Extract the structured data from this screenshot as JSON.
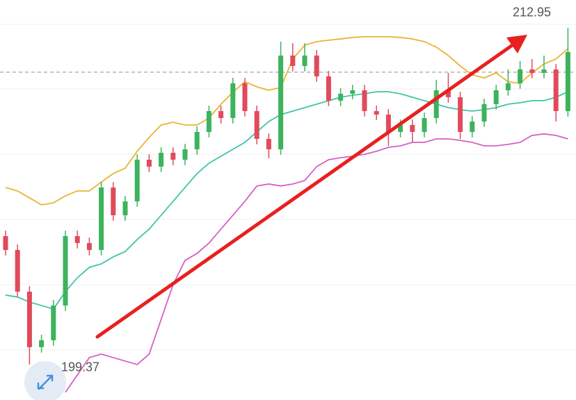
{
  "chart_data": {
    "type": "candlestick",
    "ylim": [
      197.94,
      214.07
    ],
    "up_color": "#3cb35c",
    "down_color": "#e04a5c",
    "open": [
      204.55,
      203.99,
      202.31,
      200.07,
      200.35,
      201.75,
      204.55,
      204.27,
      203.99,
      206.51,
      205.39,
      205.95,
      207.63,
      207.35,
      207.91,
      207.63,
      208.05,
      208.75,
      209.59,
      209.31,
      210.71,
      209.59,
      208.47,
      208.05,
      211.83,
      211.41,
      211.83,
      210.99,
      210.01,
      210.29,
      210.43,
      209.59,
      209.45,
      208.75,
      209.03,
      208.75,
      209.31,
      210.43,
      210.15,
      208.75,
      209.17,
      209.87,
      210.43,
      210.71,
      211.27,
      211.13,
      211.27,
      209.59
    ],
    "high": [
      204.77,
      204.21,
      202.53,
      200.57,
      201.97,
      204.77,
      204.77,
      204.49,
      206.73,
      206.73,
      206.17,
      207.85,
      207.85,
      208.13,
      208.13,
      208.27,
      208.97,
      209.81,
      209.81,
      210.93,
      210.93,
      209.81,
      208.69,
      212.39,
      212.33,
      212.33,
      212.05,
      211.21,
      210.51,
      210.65,
      210.65,
      209.81,
      209.67,
      209.25,
      209.25,
      209.53,
      210.85,
      211.13,
      210.37,
      209.39,
      210.09,
      210.65,
      211.27,
      211.61,
      211.69,
      211.83,
      211.49,
      212.95
    ],
    "low": [
      203.77,
      202.09,
      199.37,
      199.85,
      200.13,
      201.53,
      204.05,
      203.77,
      203.77,
      205.17,
      205.17,
      205.73,
      207.13,
      207.13,
      207.41,
      207.41,
      207.83,
      208.53,
      209.09,
      209.09,
      209.37,
      208.25,
      207.69,
      207.83,
      211.19,
      211.19,
      210.77,
      209.79,
      209.79,
      210.07,
      209.37,
      209.23,
      208.19,
      208.53,
      208.33,
      208.53,
      209.09,
      209.93,
      208.47,
      208.53,
      208.95,
      209.65,
      210.21,
      210.49,
      210.91,
      210.91,
      209.17,
      209.37
    ],
    "close": [
      203.99,
      202.31,
      200.07,
      200.35,
      201.75,
      204.55,
      204.27,
      203.99,
      206.51,
      205.39,
      205.95,
      207.63,
      207.35,
      207.91,
      207.63,
      208.05,
      208.75,
      209.59,
      209.31,
      210.71,
      209.59,
      208.47,
      208.05,
      211.83,
      211.41,
      211.83,
      210.99,
      210.01,
      210.29,
      210.43,
      209.59,
      209.45,
      208.75,
      209.03,
      208.75,
      209.31,
      210.43,
      210.15,
      208.75,
      209.17,
      209.87,
      210.43,
      210.71,
      211.27,
      211.13,
      211.27,
      209.59,
      211.97
    ],
    "series": [
      {
        "color": "#e8b530",
        "values": [
          206.51,
          206.37,
          206.09,
          205.81,
          205.89,
          206.17,
          206.37,
          206.37,
          206.73,
          207.07,
          207.29,
          207.97,
          208.53,
          209.03,
          209.14,
          209.03,
          209.03,
          209.31,
          209.87,
          210.35,
          210.77,
          210.57,
          210.43,
          210.54,
          211.69,
          212.25,
          212.39,
          212.45,
          212.5,
          212.56,
          212.59,
          212.59,
          212.59,
          212.56,
          212.5,
          212.39,
          212.17,
          211.83,
          211.41,
          211.05,
          210.93,
          211.13,
          210.77,
          210.71,
          211.13,
          211.49,
          211.69,
          212.11
        ]
      },
      {
        "color": "#3ec4a8",
        "values": [
          202.17,
          202.09,
          201.89,
          201.75,
          201.61,
          202.31,
          202.87,
          203.29,
          203.43,
          203.71,
          203.93,
          204.41,
          204.83,
          205.39,
          205.95,
          206.51,
          207.07,
          207.49,
          207.77,
          208.05,
          208.33,
          208.75,
          209.17,
          209.45,
          209.59,
          209.73,
          209.87,
          210.01,
          210.15,
          210.23,
          210.29,
          210.37,
          210.37,
          210.29,
          210.15,
          210.01,
          209.87,
          209.73,
          209.65,
          209.59,
          209.65,
          209.73,
          209.87,
          209.93,
          210.01,
          210.01,
          210.15,
          210.37
        ]
      },
      {
        "color": "#d65fc4",
        "values": [
          null,
          null,
          null,
          null,
          null,
          198.25,
          198.95,
          199.65,
          199.79,
          199.65,
          199.51,
          199.37,
          199.79,
          201.19,
          202.59,
          203.57,
          203.85,
          204.27,
          204.83,
          205.39,
          205.95,
          206.57,
          206.65,
          206.57,
          206.65,
          206.79,
          207.35,
          207.63,
          207.71,
          207.77,
          207.85,
          207.97,
          208.13,
          208.19,
          208.33,
          208.33,
          208.47,
          208.47,
          208.41,
          208.33,
          208.19,
          208.19,
          208.25,
          208.33,
          208.61,
          208.67,
          208.61,
          208.47
        ]
      }
    ],
    "reference_line": 211.16,
    "annotations": [
      {
        "text": "212.95",
        "value": 212.95
      },
      {
        "text": "199.37",
        "value": 199.37
      }
    ]
  }
}
